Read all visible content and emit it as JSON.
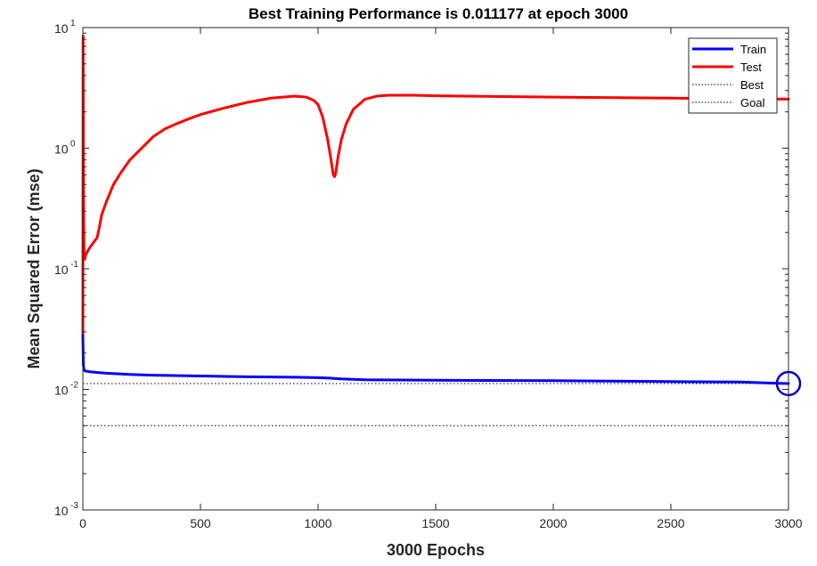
{
  "chart_data": {
    "type": "line",
    "title": "Best Training Performance is 0.011177 at epoch 3000",
    "xlabel": "3000 Epochs",
    "ylabel": "Mean Squared Error  (mse)",
    "xlim": [
      0,
      3000
    ],
    "ylim": [
      0.001,
      10
    ],
    "yscale": "log",
    "xticks": [
      0,
      500,
      1000,
      1500,
      2000,
      2500,
      3000
    ],
    "yticks": [
      {
        "value": 0.001,
        "base": "10",
        "exp": "-3"
      },
      {
        "value": 0.01,
        "base": "10",
        "exp": "-2"
      },
      {
        "value": 0.1,
        "base": "10",
        "exp": "-1"
      },
      {
        "value": 1,
        "base": "10",
        "exp": "0"
      },
      {
        "value": 10,
        "base": "10",
        "exp": "1"
      }
    ],
    "grid": false,
    "legend_position": "top-right",
    "series": [
      {
        "name": "Train",
        "color": "#0000ff",
        "style": "solid",
        "x": [
          0,
          2,
          5,
          10,
          30,
          60,
          100,
          200,
          300,
          500,
          700,
          900,
          1000,
          1050,
          1100,
          1200,
          1500,
          2000,
          2500,
          2800,
          2900,
          3000
        ],
        "y": [
          0.028,
          0.016,
          0.0145,
          0.0142,
          0.014,
          0.0138,
          0.0136,
          0.0133,
          0.0131,
          0.0129,
          0.0127,
          0.0126,
          0.0125,
          0.0124,
          0.0122,
          0.012,
          0.0119,
          0.0118,
          0.0116,
          0.0115,
          0.0113,
          0.011177
        ]
      },
      {
        "name": "Test",
        "color": "#ff0000",
        "style": "solid",
        "x": [
          0,
          1,
          2,
          3,
          5,
          8,
          12,
          20,
          30,
          40,
          50,
          60,
          70,
          80,
          100,
          130,
          160,
          200,
          250,
          300,
          350,
          400,
          450,
          500,
          600,
          700,
          800,
          900,
          950,
          980,
          1000,
          1020,
          1040,
          1055,
          1065,
          1070,
          1075,
          1085,
          1100,
          1120,
          1150,
          1200,
          1250,
          1300,
          1400,
          1500,
          2000,
          2500,
          3000
        ],
        "y": [
          0.028,
          8.5,
          1.5,
          0.35,
          0.13,
          0.12,
          0.13,
          0.14,
          0.15,
          0.16,
          0.17,
          0.18,
          0.22,
          0.28,
          0.36,
          0.5,
          0.62,
          0.8,
          1.0,
          1.25,
          1.45,
          1.6,
          1.75,
          1.9,
          2.15,
          2.4,
          2.6,
          2.7,
          2.65,
          2.5,
          2.3,
          1.8,
          1.2,
          0.8,
          0.6,
          0.58,
          0.62,
          0.85,
          1.2,
          1.6,
          2.1,
          2.55,
          2.7,
          2.75,
          2.75,
          2.72,
          2.65,
          2.6,
          2.55
        ]
      },
      {
        "name": "Best",
        "color": "#000000",
        "style": "dotted",
        "y_constant": 0.011177,
        "x_constant": 3000
      },
      {
        "name": "Goal",
        "color": "#000000",
        "style": "dotted",
        "y_constant": 0.005
      }
    ],
    "best_marker": {
      "x": 3000,
      "y": 0.011177,
      "color": "#0000cc"
    }
  }
}
